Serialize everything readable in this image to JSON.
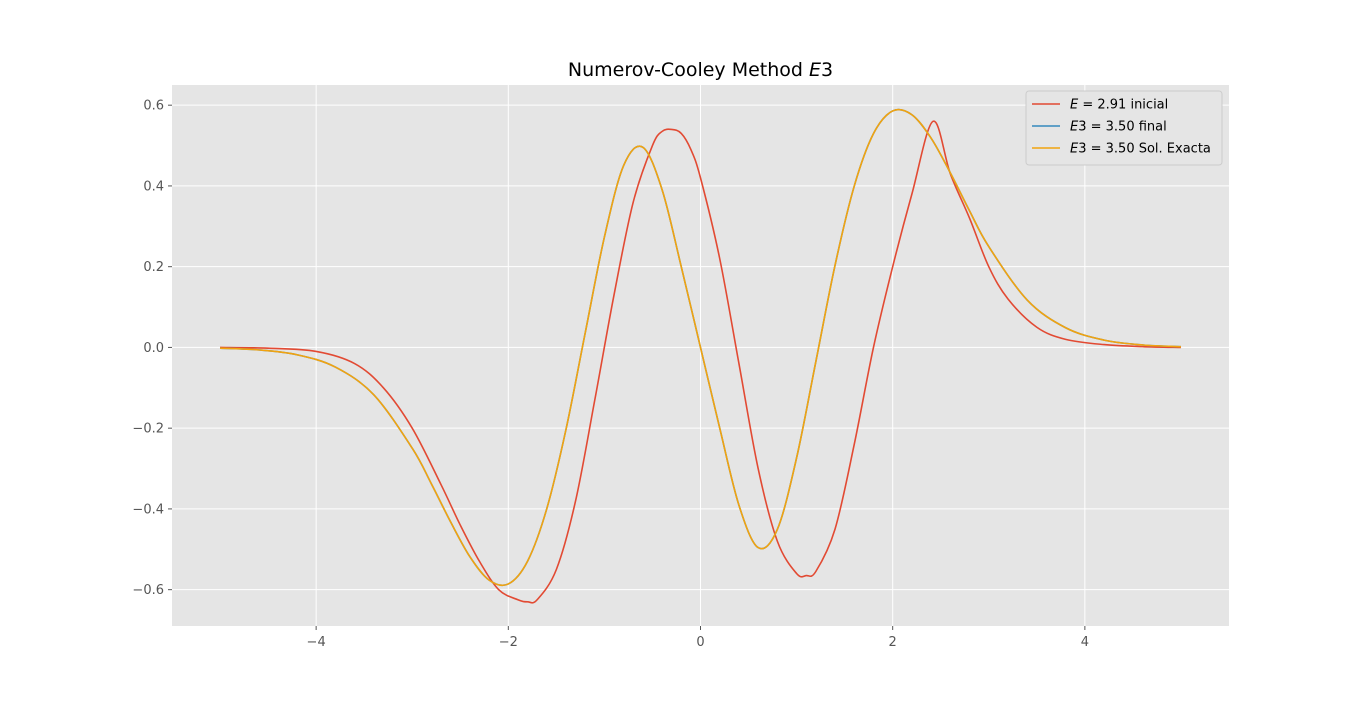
{
  "chart_data": {
    "type": "line",
    "title": "Numerov-Cooley Method E3",
    "title_prefix": "Numerov-Cooley Method ",
    "title_italic": "E",
    "title_suffix": "3",
    "xlabel": "",
    "ylabel": "",
    "xlim": [
      -5.5,
      5.5
    ],
    "ylim": [
      -0.69,
      0.65
    ],
    "xticks": [
      -4,
      -2,
      0,
      2,
      4
    ],
    "xtick_labels": [
      "−4",
      "−2",
      "0",
      "2",
      "4"
    ],
    "yticks": [
      -0.6,
      -0.4,
      -0.2,
      0.0,
      0.2,
      0.4,
      0.6
    ],
    "ytick_labels": [
      "−0.6",
      "−0.4",
      "−0.2",
      "0.0",
      "0.2",
      "0.4",
      "0.6"
    ],
    "grid": true,
    "legend_position": "top-right",
    "background_color": "#e5e5e5",
    "grid_color": "#ffffff",
    "series": [
      {
        "name": "E = 2.91 inicial",
        "legend_italic": "E",
        "legend_rest": " = 2.91 inicial",
        "color": "#e24a33",
        "x": [
          -5.0,
          -4.5,
          -4.0,
          -3.6,
          -3.3,
          -3.0,
          -2.7,
          -2.5,
          -2.3,
          -2.1,
          -1.9,
          -1.8,
          -1.7,
          -1.5,
          -1.3,
          -1.1,
          -0.9,
          -0.7,
          -0.5,
          -0.4,
          -0.3,
          -0.2,
          -0.1,
          0.0,
          0.2,
          0.4,
          0.6,
          0.8,
          1.0,
          1.1,
          1.2,
          1.4,
          1.6,
          1.8,
          2.0,
          2.2,
          2.42,
          2.6,
          2.8,
          3.0,
          3.2,
          3.5,
          3.8,
          4.2,
          4.6,
          5.0
        ],
        "y": [
          0.0,
          -0.002,
          -0.01,
          -0.04,
          -0.1,
          -0.2,
          -0.34,
          -0.44,
          -0.53,
          -0.6,
          -0.625,
          -0.63,
          -0.625,
          -0.55,
          -0.38,
          -0.13,
          0.13,
          0.36,
          0.5,
          0.535,
          0.54,
          0.53,
          0.49,
          0.42,
          0.22,
          -0.04,
          -0.3,
          -0.48,
          -0.56,
          -0.565,
          -0.555,
          -0.45,
          -0.24,
          -0.0,
          0.2,
          0.38,
          0.56,
          0.43,
          0.32,
          0.2,
          0.12,
          0.05,
          0.02,
          0.007,
          0.002,
          0.0
        ]
      },
      {
        "name": "E3 = 3.50 final",
        "legend_italic": "E",
        "legend_rest": "3 = 3.50 final",
        "color": "#348abd",
        "x": [
          -5.0,
          -4.6,
          -4.2,
          -3.8,
          -3.4,
          -3.0,
          -2.8,
          -2.6,
          -2.4,
          -2.2,
          -2.0,
          -1.8,
          -1.6,
          -1.4,
          -1.2,
          -1.0,
          -0.8,
          -0.6,
          -0.4,
          -0.2,
          0.0,
          0.2,
          0.4,
          0.6,
          0.8,
          1.0,
          1.2,
          1.4,
          1.6,
          1.8,
          2.0,
          2.2,
          2.4,
          2.6,
          2.8,
          3.0,
          3.4,
          3.8,
          4.2,
          4.6,
          5.0
        ],
        "y": [
          -0.0019,
          -0.0061,
          -0.0181,
          -0.0487,
          -0.1174,
          -0.2497,
          -0.3382,
          -0.4324,
          -0.5183,
          -0.5763,
          -0.5858,
          -0.5295,
          -0.3997,
          -0.2033,
          0.0357,
          0.2735,
          0.4505,
          0.4958,
          0.3909,
          0.1998,
          0.0,
          -0.1998,
          -0.3909,
          -0.4958,
          -0.4505,
          -0.2735,
          -0.0357,
          0.2033,
          0.3997,
          0.5295,
          0.5858,
          0.5763,
          0.5183,
          0.4324,
          0.3382,
          0.2497,
          0.1174,
          0.0487,
          0.0181,
          0.0061,
          0.0019
        ]
      },
      {
        "name": "E3 = 3.50 Sol. Exacta",
        "legend_italic": "E",
        "legend_rest": "3 = 3.50 Sol. Exacta",
        "color": "#f2a30f",
        "x": [
          -5.0,
          -4.6,
          -4.2,
          -3.8,
          -3.4,
          -3.0,
          -2.8,
          -2.6,
          -2.4,
          -2.2,
          -2.0,
          -1.8,
          -1.6,
          -1.4,
          -1.2,
          -1.0,
          -0.8,
          -0.6,
          -0.4,
          -0.2,
          0.0,
          0.2,
          0.4,
          0.6,
          0.8,
          1.0,
          1.2,
          1.4,
          1.6,
          1.8,
          2.0,
          2.2,
          2.4,
          2.6,
          2.8,
          3.0,
          3.4,
          3.8,
          4.2,
          4.6,
          5.0
        ],
        "y": [
          -0.0019,
          -0.0061,
          -0.0181,
          -0.0487,
          -0.1174,
          -0.2497,
          -0.3382,
          -0.4324,
          -0.5183,
          -0.5763,
          -0.5858,
          -0.5295,
          -0.3997,
          -0.2033,
          0.0357,
          0.2735,
          0.4505,
          0.4958,
          0.3909,
          0.1998,
          0.0,
          -0.1998,
          -0.3909,
          -0.4958,
          -0.4505,
          -0.2735,
          -0.0357,
          0.2033,
          0.3997,
          0.5295,
          0.5858,
          0.5763,
          0.5183,
          0.4324,
          0.3382,
          0.2497,
          0.1174,
          0.0487,
          0.0181,
          0.0061,
          0.0019
        ]
      }
    ]
  }
}
